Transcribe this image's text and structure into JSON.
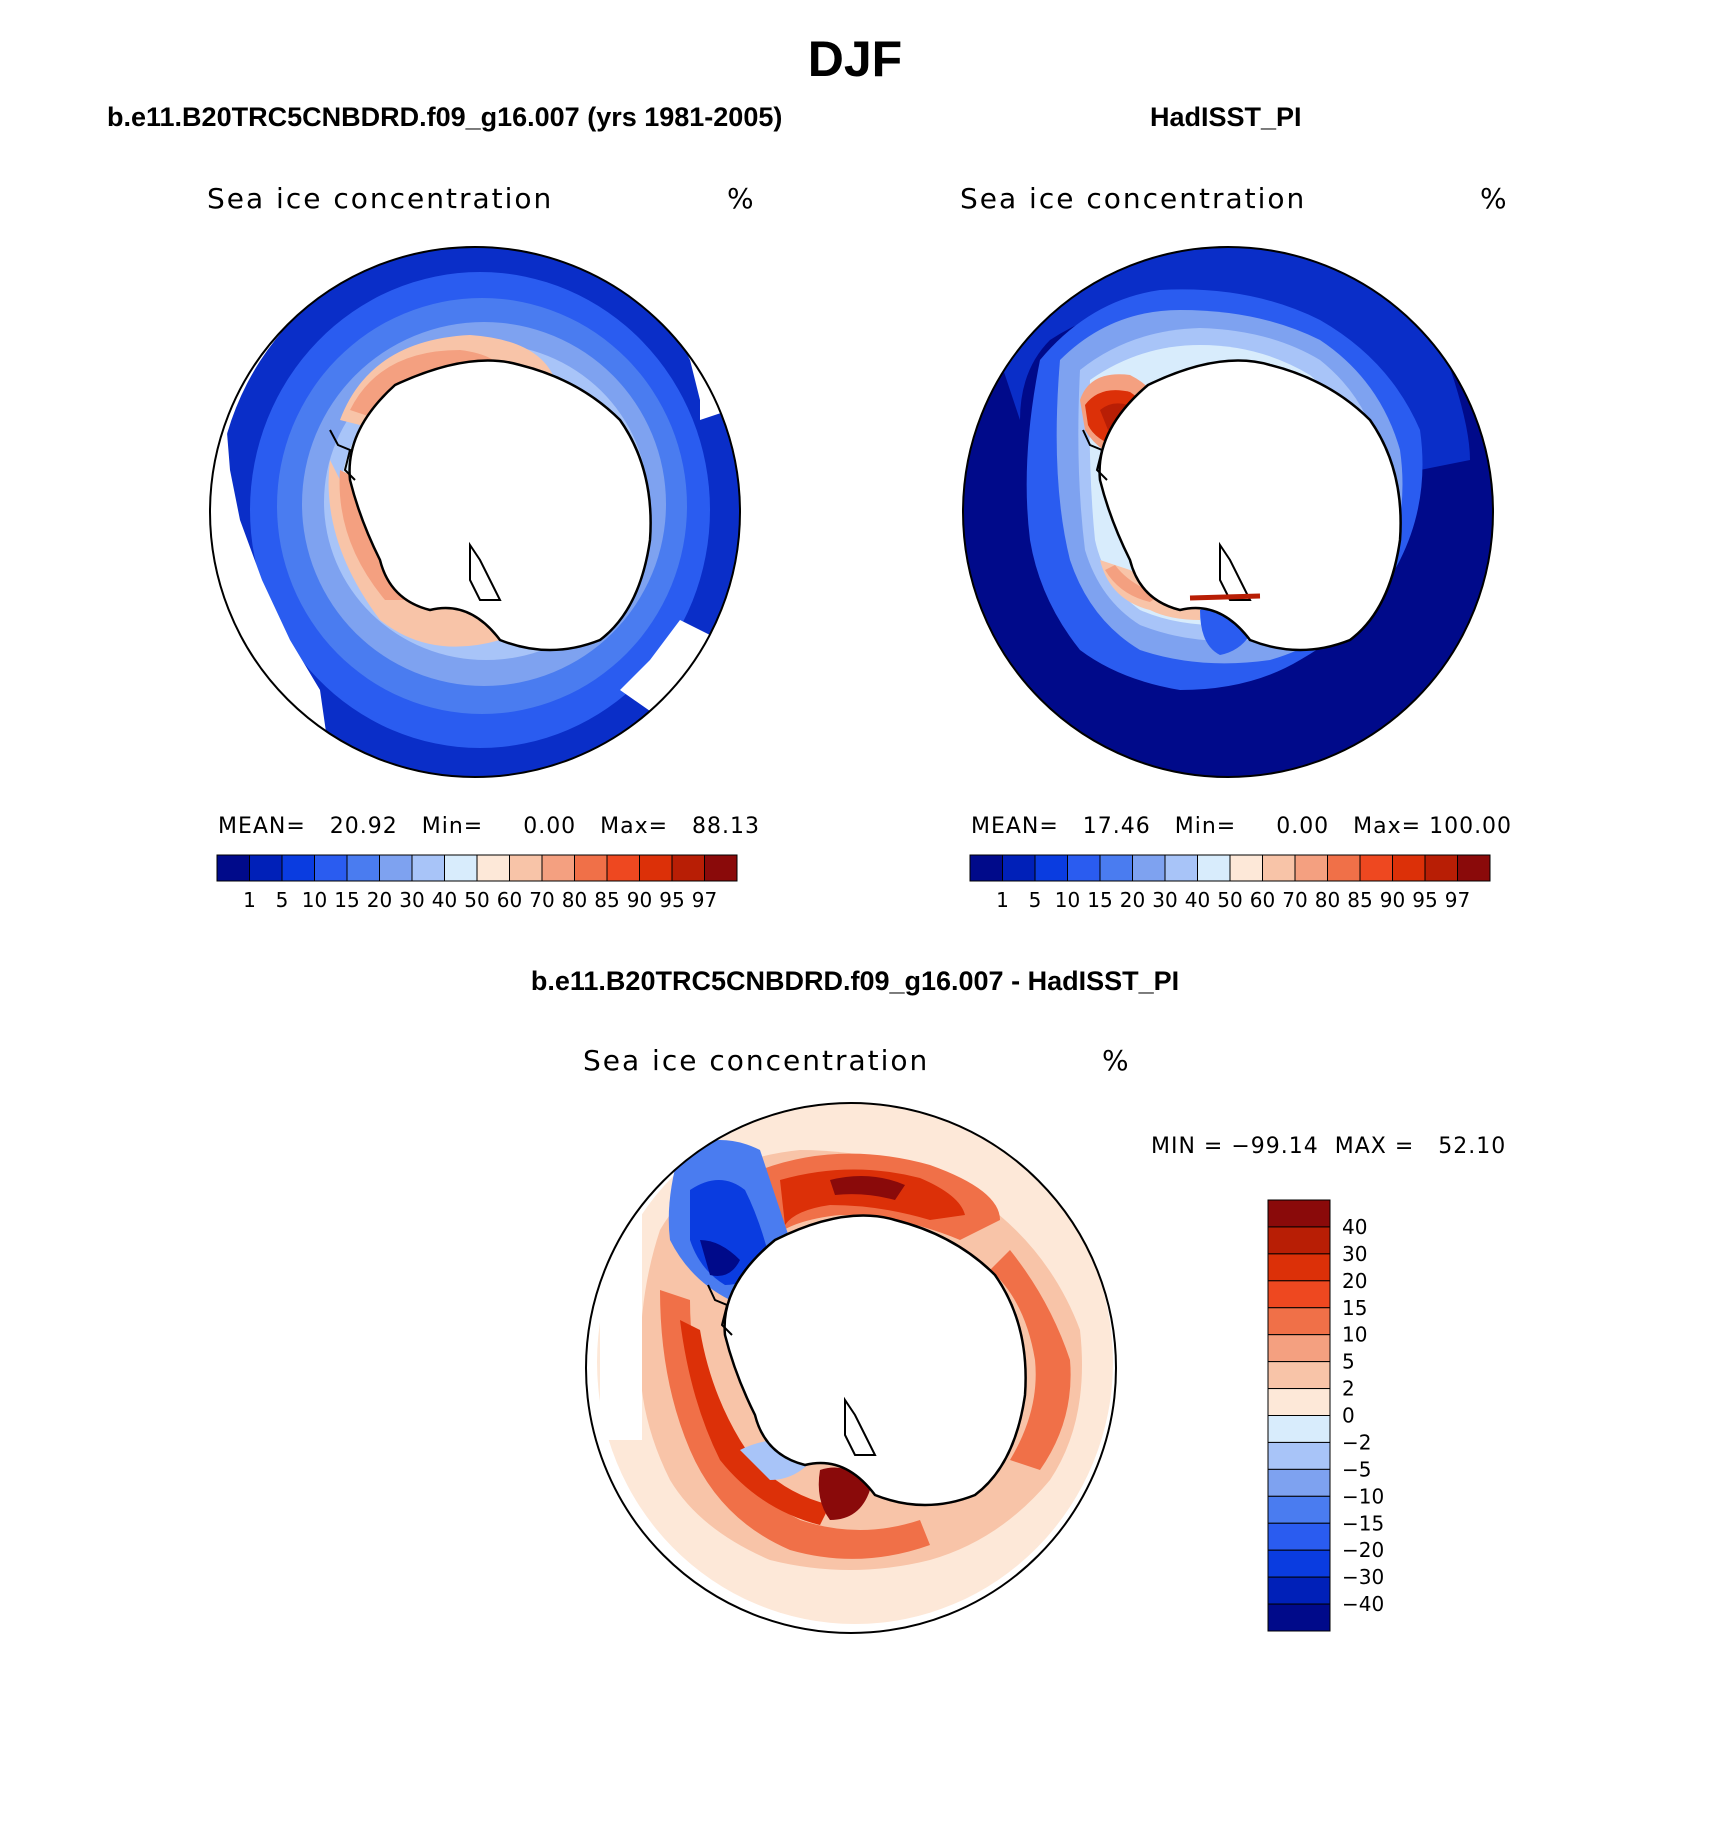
{
  "figure": {
    "title": "DJF",
    "panels": [
      {
        "title": "b.e11.B20TRC5CNBDRD.f09_g16.007 (yrs 1981-2005)",
        "plot_label": "Sea ice concentration",
        "units": "%",
        "stats": "MEAN=   20.92   Min=     0.00   Max=   88.13"
      },
      {
        "title": "HadISST_PI",
        "plot_label": "Sea ice concentration",
        "units": "%",
        "stats": "MEAN=   17.46   Min=     0.00   Max= 100.00"
      },
      {
        "title": "b.e11.B20TRC5CNBDRD.f09_g16.007 - HadISST_PI",
        "plot_label": "Sea ice concentration",
        "units": "%",
        "stats": "MIN = −99.14  MAX =   52.10"
      }
    ],
    "colorbar_main": {
      "labels": [
        "1",
        "5",
        "10",
        "15",
        "20",
        "30",
        "40",
        "50",
        "60",
        "70",
        "80",
        "85",
        "90",
        "95",
        "97"
      ],
      "colors": [
        "#000a8a",
        "#0020b8",
        "#0a3ce0",
        "#2a5cf0",
        "#4a7cf0",
        "#7ea2f0",
        "#a8c4f8",
        "#d8ecfc",
        "#fde8d8",
        "#f8c4a8",
        "#f4a080",
        "#f07048",
        "#ee4820",
        "#dc3008",
        "#b81e05",
        "#8a0a0a"
      ]
    },
    "colorbar_diff": {
      "labels": [
        "40",
        "30",
        "20",
        "15",
        "10",
        "5",
        "2",
        "0",
        "−2",
        "−5",
        "−10",
        "−15",
        "−20",
        "−30",
        "−40"
      ],
      "colors": [
        "#8a0a0a",
        "#b81e05",
        "#dc3008",
        "#ee4820",
        "#f07048",
        "#f4a080",
        "#f8c4a8",
        "#fde8d8",
        "#d8ecfc",
        "#a8c4f8",
        "#7ea2f0",
        "#4a7cf0",
        "#2a5cf0",
        "#0a3ce0",
        "#0020b8",
        "#000a8a"
      ]
    }
  }
}
